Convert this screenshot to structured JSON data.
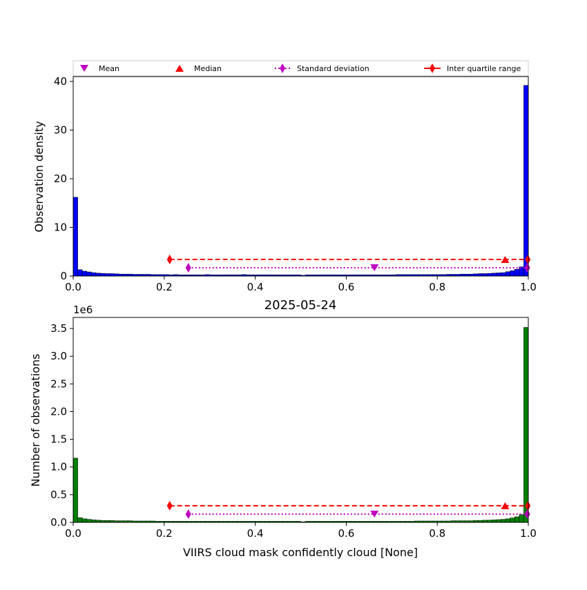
{
  "colors": {
    "top_bars": "#0000ff",
    "bottom_bars": "#007f00",
    "bar_edge": "#000000",
    "mean": "#bf00bf",
    "median": "#ff0000",
    "std": "#bf00bf",
    "iqr": "#ff0000"
  },
  "legend": {
    "placement": "top, above upper panel",
    "mean": "Mean",
    "median": "Median",
    "std": "Standard deviation",
    "iqr": "Inter quartile range"
  },
  "chart_data": [
    {
      "type": "bar",
      "panel": "top",
      "title": "",
      "xlabel": "",
      "ylabel": "Observation density",
      "xlim": [
        0.0,
        1.0
      ],
      "ylim": [
        0,
        41
      ],
      "xticks": [
        "0.0",
        "0.2",
        "0.4",
        "0.6",
        "0.8",
        "1.0"
      ],
      "yticks": [
        "0",
        "10",
        "20",
        "30",
        "40"
      ],
      "bin_width": 0.01,
      "values": [
        16.2,
        1.3,
        1.0,
        0.85,
        0.7,
        0.6,
        0.55,
        0.5,
        0.5,
        0.45,
        0.4,
        0.4,
        0.4,
        0.35,
        0.35,
        0.35,
        0.35,
        0.3,
        0.3,
        0.3,
        0.3,
        0.25,
        0.3,
        0.25,
        0.25,
        0.25,
        0.25,
        0.25,
        0.25,
        0.3,
        0.25,
        0.25,
        0.25,
        0.25,
        0.25,
        0.25,
        0.25,
        0.3,
        0.25,
        0.25,
        0.25,
        0.25,
        0.25,
        0.25,
        0.25,
        0.25,
        0.25,
        0.25,
        0.25,
        0.25,
        0.15,
        0.25,
        0.25,
        0.25,
        0.25,
        0.25,
        0.25,
        0.25,
        0.25,
        0.25,
        0.25,
        0.25,
        0.25,
        0.25,
        0.25,
        0.25,
        0.25,
        0.25,
        0.25,
        0.25,
        0.25,
        0.3,
        0.3,
        0.3,
        0.3,
        0.3,
        0.3,
        0.3,
        0.3,
        0.3,
        0.3,
        0.3,
        0.35,
        0.35,
        0.35,
        0.4,
        0.4,
        0.4,
        0.45,
        0.5,
        0.5,
        0.55,
        0.6,
        0.65,
        0.7,
        0.9,
        1.1,
        1.4,
        1.9,
        39.2
      ],
      "stats": {
        "mean": {
          "x": 0.662,
          "y": 1.7
        },
        "median": {
          "x": 0.949,
          "y": 3.4
        },
        "std": {
          "x1": 0.253,
          "x2": 0.998,
          "y": 1.7
        },
        "iqr": {
          "x1": 0.212,
          "x2": 0.999,
          "y": 3.4
        }
      }
    },
    {
      "type": "bar",
      "panel": "bottom",
      "title": "2025-05-24",
      "xlabel": "VIIRS cloud mask confidently cloud [None]",
      "ylabel": "Number of observations",
      "scale_label": "1e6",
      "xlim": [
        0.0,
        1.0
      ],
      "ylim": [
        0,
        3.7
      ],
      "xticks": [
        "0.0",
        "0.2",
        "0.4",
        "0.6",
        "0.8",
        "1.0"
      ],
      "yticks": [
        "0.0",
        "0.5",
        "1.0",
        "1.5",
        "2.0",
        "2.5",
        "3.0",
        "3.5"
      ],
      "bin_width": 0.01,
      "values": [
        1.16,
        0.085,
        0.065,
        0.055,
        0.045,
        0.04,
        0.035,
        0.035,
        0.035,
        0.03,
        0.03,
        0.03,
        0.03,
        0.025,
        0.025,
        0.025,
        0.025,
        0.025,
        0.02,
        0.02,
        0.02,
        0.02,
        0.02,
        0.02,
        0.02,
        0.02,
        0.02,
        0.02,
        0.02,
        0.02,
        0.02,
        0.02,
        0.02,
        0.02,
        0.02,
        0.02,
        0.02,
        0.02,
        0.02,
        0.02,
        0.02,
        0.02,
        0.02,
        0.02,
        0.02,
        0.02,
        0.02,
        0.02,
        0.02,
        0.02,
        0.01,
        0.02,
        0.02,
        0.02,
        0.02,
        0.02,
        0.02,
        0.02,
        0.02,
        0.02,
        0.02,
        0.02,
        0.02,
        0.02,
        0.02,
        0.02,
        0.02,
        0.02,
        0.02,
        0.02,
        0.02,
        0.02,
        0.02,
        0.02,
        0.02,
        0.025,
        0.025,
        0.025,
        0.025,
        0.025,
        0.025,
        0.025,
        0.025,
        0.03,
        0.03,
        0.03,
        0.03,
        0.03,
        0.035,
        0.035,
        0.04,
        0.04,
        0.045,
        0.05,
        0.055,
        0.065,
        0.08,
        0.1,
        0.14,
        3.52
      ],
      "stats": {
        "mean": {
          "x": 0.662,
          "y": 0.15
        },
        "median": {
          "x": 0.949,
          "y": 0.3
        },
        "std": {
          "x1": 0.253,
          "x2": 0.998,
          "y": 0.15
        },
        "iqr": {
          "x1": 0.212,
          "x2": 0.999,
          "y": 0.3
        }
      }
    }
  ]
}
